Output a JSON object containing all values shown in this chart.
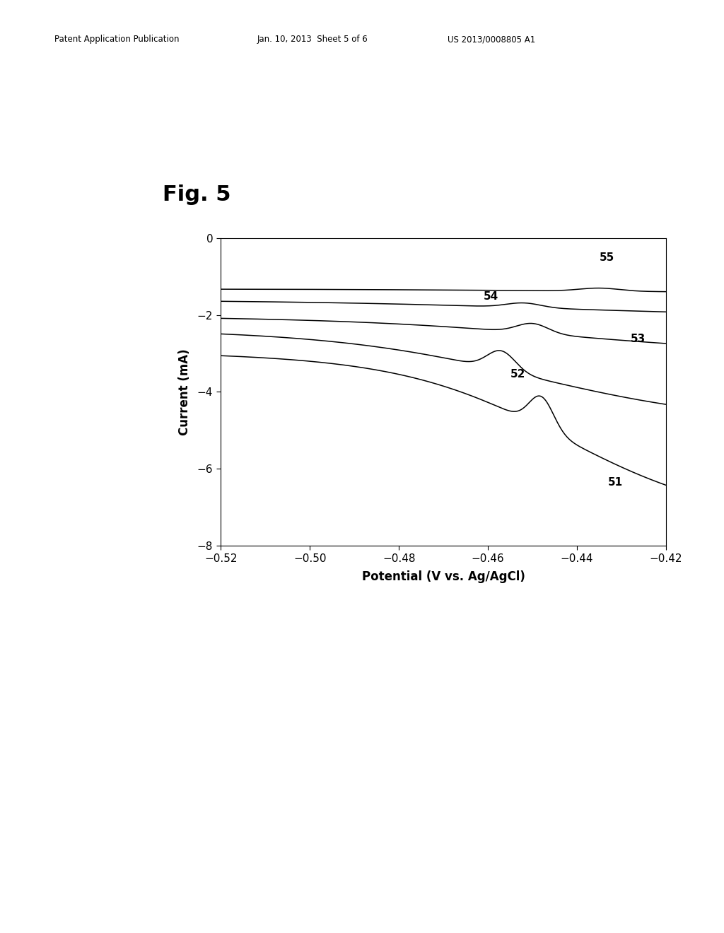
{
  "fig_label": "Fig. 5",
  "patent_left": "Patent Application Publication",
  "patent_center": "Jan. 10, 2013  Sheet 5 of 6",
  "patent_right": "US 2013/0008805 A1",
  "xlabel": "Potential (V vs. Ag/AgCl)",
  "ylabel": "Current (mA)",
  "xlim": [
    -0.52,
    -0.42
  ],
  "ylim": [
    -8,
    0
  ],
  "xticks": [
    -0.52,
    -0.5,
    -0.48,
    -0.46,
    -0.44,
    -0.42
  ],
  "yticks": [
    0,
    -2,
    -4,
    -6,
    -8
  ],
  "background_color": "#ffffff",
  "line_color": "#000000"
}
